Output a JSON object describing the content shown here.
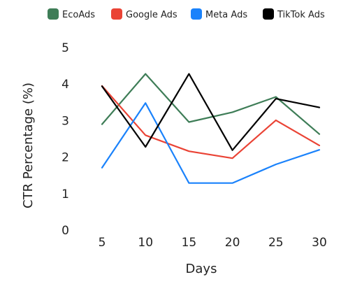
{
  "chart_data": {
    "type": "line",
    "x": [
      5,
      10,
      15,
      20,
      25,
      30
    ],
    "xlabel": "Days",
    "ylabel": "CTR Percentage (%)",
    "xticks": [
      "5",
      "10",
      "15",
      "20",
      "25",
      "30"
    ],
    "yticks": [
      "0",
      "1",
      "2",
      "3",
      "4",
      "5"
    ],
    "ylim": [
      0,
      5
    ],
    "grid": false,
    "legend_position": "top",
    "series": [
      {
        "name": "EcoAds",
        "color": "#3e7d57",
        "values": [
          2.9,
          4.28,
          2.96,
          3.23,
          3.65,
          2.63
        ]
      },
      {
        "name": "Google Ads",
        "color": "#ea4335",
        "values": [
          3.95,
          2.6,
          2.16,
          1.97,
          3.01,
          2.32
        ]
      },
      {
        "name": "Meta Ads",
        "color": "#1a82fb",
        "values": [
          1.71,
          3.48,
          1.29,
          1.29,
          1.8,
          2.2
        ]
      },
      {
        "name": "TikTok Ads",
        "color": "#000000",
        "values": [
          3.94,
          2.28,
          4.28,
          2.19,
          3.6,
          3.36
        ]
      }
    ]
  }
}
